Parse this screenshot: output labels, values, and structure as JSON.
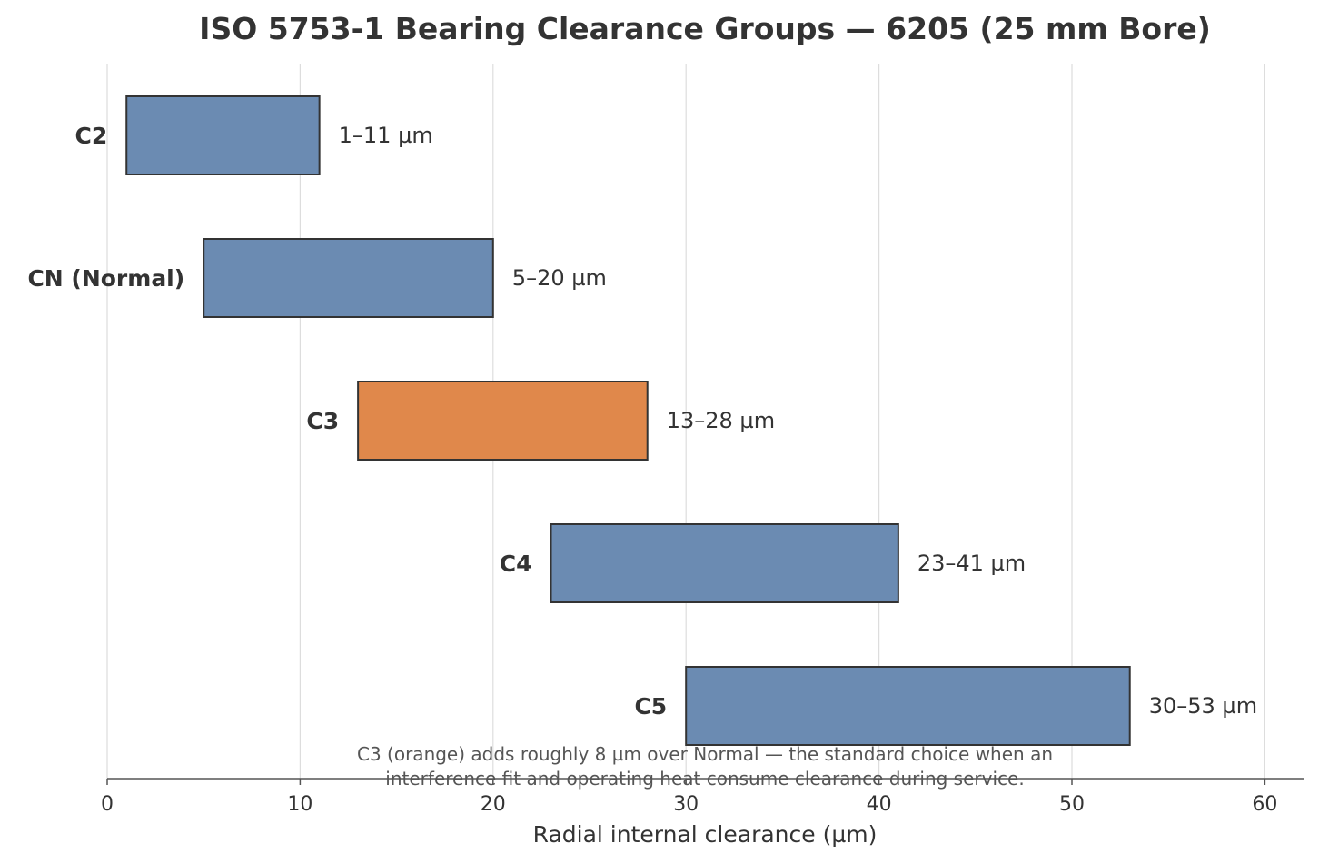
{
  "chart_data": {
    "type": "bar",
    "orientation": "horizontal-range",
    "title": "ISO 5753-1 Bearing Clearance Groups — 6205 (25 mm Bore)",
    "xlabel": "Radial internal clearance (µm)",
    "ylabel": "",
    "xlim": [
      0,
      62
    ],
    "xticks": [
      0,
      10,
      20,
      30,
      40,
      50,
      60
    ],
    "grid": "vertical",
    "legend": "none",
    "categories": [
      "C2",
      "CN (Normal)",
      "C3",
      "C4",
      "C5"
    ],
    "ranges": [
      {
        "category": "C2",
        "min": 1,
        "max": 11,
        "label": "1–11 µm",
        "color": "#6b8bb2"
      },
      {
        "category": "CN (Normal)",
        "min": 5,
        "max": 20,
        "label": "5–20 µm",
        "color": "#6b8bb2"
      },
      {
        "category": "C3",
        "min": 13,
        "max": 28,
        "label": "13–28 µm",
        "color": "#e0884b"
      },
      {
        "category": "C4",
        "min": 23,
        "max": 41,
        "label": "23–41 µm",
        "color": "#6b8bb2"
      },
      {
        "category": "C5",
        "min": 30,
        "max": 53,
        "label": "30–53 µm",
        "color": "#6b8bb2"
      }
    ],
    "annotation": [
      "C3 (orange) adds roughly 8 µm over Normal — the standard choice when an",
      "interference fit and operating heat consume clearance during service."
    ]
  }
}
